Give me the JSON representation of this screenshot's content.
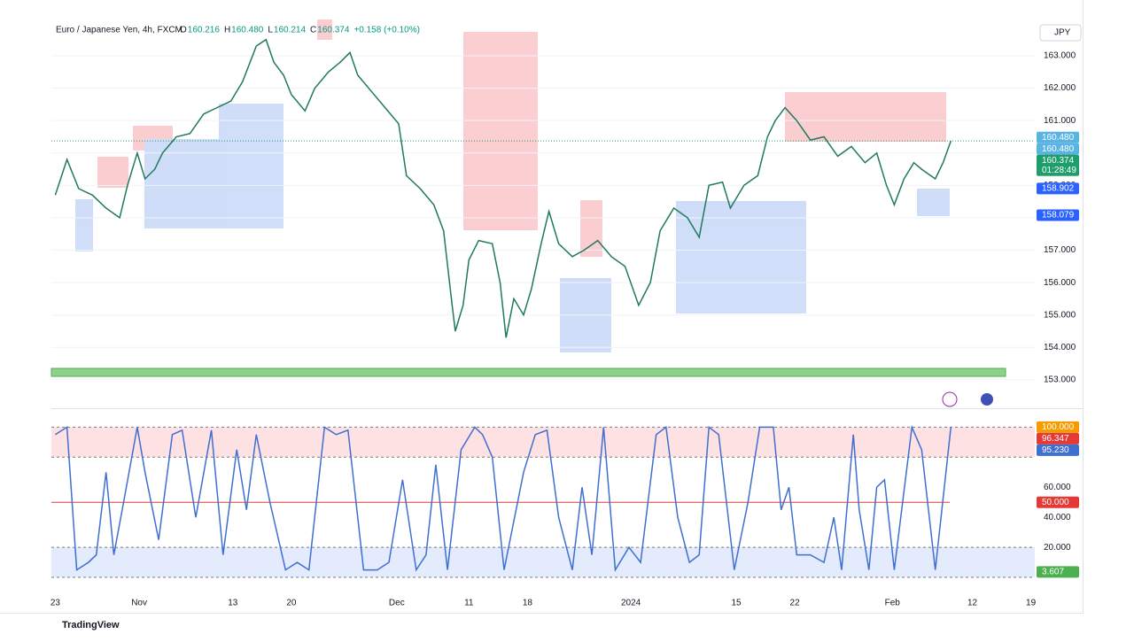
{
  "header": {
    "symbol": "Euro / Japanese Yen, 4h, FXCM",
    "ohlc": [
      {
        "key": "O",
        "value": "160.216"
      },
      {
        "key": "H",
        "value": "160.480"
      },
      {
        "key": "L",
        "value": "160.214"
      },
      {
        "key": "C",
        "value": "160.374"
      }
    ],
    "change": "+0.158 (+0.10%)"
  },
  "currency": "JPY",
  "brand": "TradingView",
  "chart_data": [
    {
      "type": "line",
      "name": "price",
      "color": "#1f7a5c",
      "x": [
        0,
        6,
        12,
        19,
        26,
        33,
        37,
        42,
        46,
        51,
        55,
        62,
        69,
        76,
        83,
        90,
        96,
        103,
        108,
        112,
        117,
        121,
        128,
        133,
        140,
        146,
        151,
        155,
        162,
        169,
        176,
        180,
        187,
        194,
        199,
        203,
        205,
        209,
        212,
        217,
        224,
        228,
        231,
        235,
        240,
        244,
        249,
        253,
        258,
        265,
        271,
        278,
        285,
        292,
        299,
        305,
        310,
        317,
        324,
        330,
        335,
        342,
        346,
        353,
        360,
        365,
        369,
        374,
        380,
        387,
        394,
        401,
        408,
        415,
        421,
        426,
        430,
        435,
        440,
        444,
        451,
        455,
        459
      ],
      "values": [
        158.7,
        159.8,
        158.9,
        158.7,
        158.3,
        158.0,
        159.0,
        160.0,
        159.2,
        159.5,
        160.0,
        160.5,
        160.6,
        161.2,
        161.4,
        161.6,
        162.2,
        163.3,
        163.5,
        162.8,
        162.4,
        161.8,
        161.3,
        162.0,
        162.5,
        162.8,
        163.1,
        162.4,
        161.9,
        161.4,
        160.9,
        159.3,
        158.9,
        158.4,
        157.6,
        155.5,
        154.5,
        155.3,
        156.7,
        157.3,
        157.2,
        156.0,
        154.3,
        155.5,
        155.0,
        155.8,
        157.2,
        158.2,
        157.2,
        156.8,
        157.0,
        157.3,
        156.8,
        156.5,
        155.3,
        156.0,
        157.6,
        158.3,
        158.0,
        157.4,
        159.0,
        159.1,
        158.3,
        159.0,
        159.3,
        160.5,
        161.0,
        161.4,
        161.0,
        160.4,
        160.5,
        159.9,
        160.2,
        159.7,
        160.0,
        159.0,
        158.4,
        159.2,
        159.7,
        159.5,
        159.2,
        159.7,
        160.374
      ],
      "xlim": [
        -2,
        502
      ],
      "xticks": [
        {
          "value": 0,
          "label": "23"
        },
        {
          "value": 43,
          "label": "Nov"
        },
        {
          "value": 91,
          "label": "13"
        },
        {
          "value": 121,
          "label": "20"
        },
        {
          "value": 175,
          "label": "Dec"
        },
        {
          "value": 212,
          "label": "11"
        },
        {
          "value": 242,
          "label": "18"
        },
        {
          "value": 295,
          "label": "2024"
        },
        {
          "value": 349,
          "label": "15"
        },
        {
          "value": 379,
          "label": "22"
        },
        {
          "value": 429,
          "label": "Feb"
        },
        {
          "value": 470,
          "label": "12"
        },
        {
          "value": 500,
          "label": "19"
        }
      ],
      "ylim": [
        152.15,
        164.12
      ],
      "yticks": [
        {
          "value": 153,
          "label": "153.000"
        },
        {
          "value": 154,
          "label": "154.000"
        },
        {
          "value": 155,
          "label": "155.000"
        },
        {
          "value": 156,
          "label": "156.000"
        },
        {
          "value": 157,
          "label": "157.000"
        },
        {
          "value": 158,
          "label": "158.000"
        },
        {
          "value": 159,
          "label": "159.000"
        },
        {
          "value": 160,
          "label": "160.000"
        },
        {
          "value": 161,
          "label": "161.000"
        },
        {
          "value": 162,
          "label": "162.000"
        },
        {
          "value": 163,
          "label": "163.000"
        }
      ],
      "grid": true,
      "price_tags": [
        {
          "value": 160.48,
          "label": "160.480",
          "color": "#5ab4e3"
        },
        {
          "value": 160.48,
          "label": "160.480",
          "color": "#5ab4e3"
        },
        {
          "value": 160.374,
          "label": "160.374",
          "color": "#1e9e6a"
        },
        {
          "value": 158.902,
          "label": "158.902",
          "color": "#2962ff"
        },
        {
          "value": 158.079,
          "label": "158.079",
          "color": "#2962ff"
        }
      ],
      "countdown": "01:28:49"
    },
    {
      "type": "line",
      "name": "oscillator",
      "color": "#3f6fd1",
      "x": [
        0,
        6,
        11,
        17,
        21,
        26,
        30,
        35,
        42,
        46,
        53,
        60,
        65,
        72,
        80,
        86,
        93,
        98,
        103,
        110,
        118,
        124,
        130,
        138,
        144,
        150,
        158,
        165,
        171,
        178,
        185,
        190,
        195,
        201,
        208,
        215,
        219,
        224,
        230,
        240,
        246,
        252,
        258,
        265,
        270,
        275,
        281,
        287,
        294,
        300,
        308,
        313,
        319,
        325,
        330,
        335,
        340,
        348,
        355,
        361,
        368,
        372,
        376,
        380,
        387,
        394,
        399,
        403,
        409,
        412,
        417,
        421,
        425,
        430,
        439,
        444,
        451,
        459
      ],
      "values": [
        95,
        100,
        5,
        10,
        15,
        70,
        15,
        50,
        100,
        70,
        25,
        95,
        98,
        40,
        98,
        15,
        85,
        45,
        95,
        50,
        5,
        10,
        5,
        100,
        95,
        98,
        5,
        5,
        10,
        65,
        5,
        15,
        75,
        5,
        85,
        100,
        95,
        80,
        5,
        70,
        95,
        98,
        40,
        5,
        60,
        15,
        100,
        5,
        20,
        10,
        95,
        100,
        40,
        10,
        15,
        100,
        95,
        5,
        50,
        100,
        100,
        45,
        60,
        15,
        15,
        10,
        40,
        5,
        95,
        45,
        5,
        60,
        65,
        5,
        100,
        85,
        5,
        100
      ],
      "ylim": [
        -9.4,
        112
      ],
      "yticks": [
        {
          "value": 20,
          "label": "20.000"
        },
        {
          "value": 40,
          "label": "40.000"
        },
        {
          "value": 60,
          "label": "60.000"
        }
      ],
      "bands": {
        "upper": 80,
        "middle": 50,
        "lower": 20
      },
      "price_tags": [
        {
          "value": 100,
          "label": "100.000",
          "color": "#f59b00"
        },
        {
          "value": 96.347,
          "label": "96.347",
          "color": "#e53935"
        },
        {
          "value": 95.23,
          "label": "95.230",
          "color": "#3f6fd1"
        },
        {
          "value": 50,
          "label": "50.000",
          "color": "#e53935"
        },
        {
          "value": 3.607,
          "label": "3.607",
          "color": "#4caf50"
        }
      ]
    }
  ]
}
